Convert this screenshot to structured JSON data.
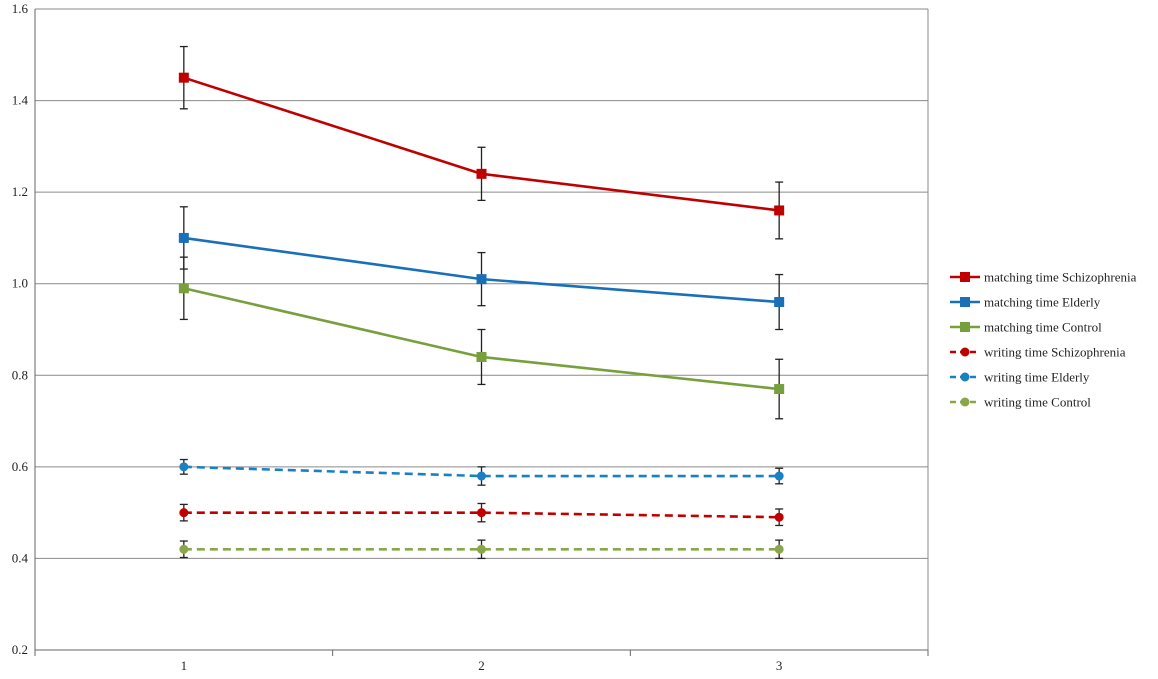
{
  "chart_data": {
    "type": "line",
    "title": "",
    "xlabel": "",
    "ylabel": "",
    "categories": [
      "1",
      "2",
      "3"
    ],
    "x": [
      1,
      2,
      3
    ],
    "ylim": [
      0.2,
      1.6
    ],
    "yticks": [
      "0.2",
      "0.4",
      "0.6",
      "0.8",
      "1.0",
      "1.2",
      "1.4",
      "1.6"
    ],
    "grid": "horizontal",
    "legend_position": "right",
    "series": [
      {
        "name": "matching time Schizophrenia",
        "values": [
          1.45,
          1.24,
          1.16
        ],
        "errors": [
          0.068,
          0.058,
          0.062
        ],
        "color": "#c00000",
        "marker": "square",
        "line": "solid"
      },
      {
        "name": "matching time Elderly",
        "values": [
          1.1,
          1.01,
          0.96
        ],
        "errors": [
          0.068,
          0.058,
          0.06
        ],
        "color": "#1a70b8",
        "marker": "square",
        "line": "solid"
      },
      {
        "name": "matching time Control",
        "values": [
          0.99,
          0.84,
          0.77
        ],
        "errors": [
          0.068,
          0.06,
          0.065
        ],
        "color": "#77a03c",
        "marker": "square",
        "line": "solid"
      },
      {
        "name": "writing time Schizophrenia",
        "values": [
          0.5,
          0.5,
          0.49
        ],
        "errors": [
          0.018,
          0.02,
          0.018
        ],
        "color": "#c00000",
        "marker": "circle",
        "line": "dashed"
      },
      {
        "name": "writing time Elderly",
        "values": [
          0.6,
          0.58,
          0.58
        ],
        "errors": [
          0.016,
          0.02,
          0.017
        ],
        "color": "#1a80c4",
        "marker": "circle",
        "line": "dashed"
      },
      {
        "name": "writing time Control",
        "values": [
          0.42,
          0.42,
          0.42
        ],
        "errors": [
          0.018,
          0.02,
          0.02
        ],
        "color": "#8aa64a",
        "marker": "circle",
        "line": "dashed"
      }
    ]
  }
}
